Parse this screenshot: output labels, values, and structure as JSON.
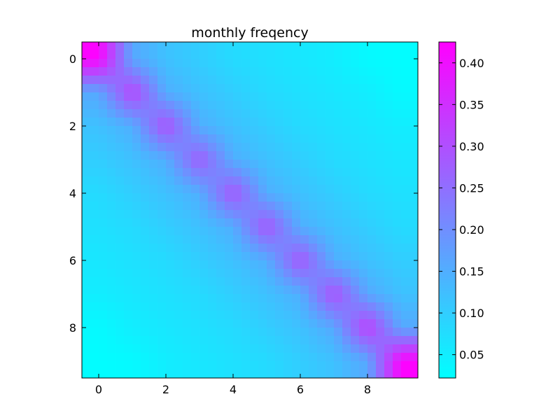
{
  "chart_data": {
    "type": "heatmap",
    "title": "monthly freqency",
    "xlabel": "",
    "ylabel": "",
    "x_ticks": [
      0,
      2,
      4,
      6,
      8
    ],
    "y_ticks": [
      0,
      2,
      4,
      6,
      8
    ],
    "xlim": [
      -0.5,
      9.5
    ],
    "ylim": [
      9.5,
      -0.5
    ],
    "interpolation": "smooth",
    "colormap": "cool",
    "colormap_colors": [
      "#00ffff",
      "#ff00ff"
    ],
    "colorbar": {
      "min": 0.022,
      "max": 0.425,
      "ticks": [
        0.05,
        0.1,
        0.15,
        0.2,
        0.25,
        0.3,
        0.35,
        0.4
      ],
      "tick_labels": [
        "0.05",
        "0.10",
        "0.15",
        "0.20",
        "0.25",
        "0.30",
        "0.35",
        "0.40"
      ]
    },
    "rows": 10,
    "cols": 10,
    "values": [
      [
        0.42,
        0.16,
        0.12,
        0.1,
        0.08,
        0.07,
        0.06,
        0.05,
        0.03,
        0.025
      ],
      [
        0.16,
        0.32,
        0.15,
        0.12,
        0.1,
        0.08,
        0.07,
        0.06,
        0.05,
        0.03
      ],
      [
        0.12,
        0.15,
        0.3,
        0.15,
        0.12,
        0.1,
        0.08,
        0.07,
        0.06,
        0.05
      ],
      [
        0.1,
        0.12,
        0.15,
        0.28,
        0.15,
        0.12,
        0.1,
        0.08,
        0.07,
        0.06
      ],
      [
        0.08,
        0.1,
        0.12,
        0.15,
        0.29,
        0.15,
        0.12,
        0.1,
        0.08,
        0.07
      ],
      [
        0.07,
        0.08,
        0.1,
        0.12,
        0.15,
        0.29,
        0.15,
        0.12,
        0.1,
        0.08
      ],
      [
        0.06,
        0.07,
        0.08,
        0.1,
        0.12,
        0.15,
        0.29,
        0.15,
        0.12,
        0.1
      ],
      [
        0.05,
        0.06,
        0.07,
        0.08,
        0.1,
        0.12,
        0.15,
        0.3,
        0.16,
        0.12
      ],
      [
        0.03,
        0.05,
        0.06,
        0.07,
        0.08,
        0.1,
        0.12,
        0.16,
        0.33,
        0.16
      ],
      [
        0.025,
        0.03,
        0.05,
        0.06,
        0.07,
        0.08,
        0.1,
        0.12,
        0.16,
        0.42
      ]
    ]
  }
}
